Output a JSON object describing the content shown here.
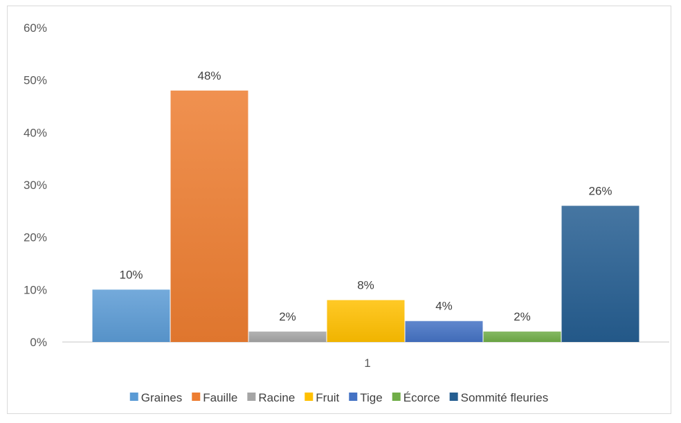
{
  "chart_data": {
    "type": "bar",
    "categories": [
      "1"
    ],
    "series": [
      {
        "name": "Graines",
        "values": [
          0.1
        ],
        "color": "#5b9bd5"
      },
      {
        "name": "Fauille",
        "values": [
          0.48
        ],
        "color": "#ed7d31"
      },
      {
        "name": "Racine",
        "values": [
          0.02
        ],
        "color": "#a5a5a5"
      },
      {
        "name": "Fruit",
        "values": [
          0.08
        ],
        "color": "#ffc000"
      },
      {
        "name": "Tige",
        "values": [
          0.04
        ],
        "color": "#4472c4"
      },
      {
        "name": "Écorce",
        "values": [
          0.02
        ],
        "color": "#70ad47"
      },
      {
        "name": "Sommité fleuries",
        "values": [
          0.26
        ],
        "color": "#255e91"
      }
    ],
    "data_labels": [
      "10%",
      "48%",
      "2%",
      "8%",
      "4%",
      "2%",
      "26%"
    ],
    "y_ticks": [
      "0%",
      "10%",
      "20%",
      "30%",
      "40%",
      "50%",
      "60%"
    ],
    "ylim": [
      0,
      0.6
    ],
    "title": "",
    "xlabel": "",
    "ylabel": "",
    "grid": false,
    "legend_position": "bottom"
  }
}
